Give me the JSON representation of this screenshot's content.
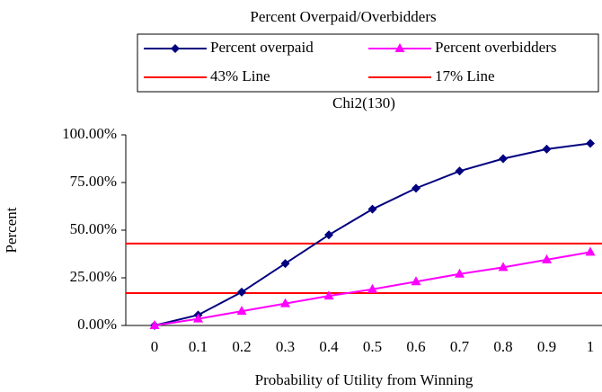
{
  "chart_data": {
    "type": "line",
    "title": "Percent Overpaid/Overbidders",
    "subtitle": "Chi2(130)",
    "x_label": "Probability of Utility from Winning",
    "y_label": "Percent",
    "categories": [
      "0",
      "0.1",
      "0.2",
      "0.3",
      "0.4",
      "0.5",
      "0.6",
      "0.7",
      "0.8",
      "0.9",
      "1"
    ],
    "series": [
      {
        "name": "Percent overpaid",
        "color": "#000080",
        "marker": "diamond",
        "values": [
          0,
          5.5,
          17.5,
          32.5,
          47.5,
          61,
          72,
          81,
          87.5,
          92.5,
          95.5
        ]
      },
      {
        "name": "Percent overbidders",
        "color": "#ff00ff",
        "marker": "triangle",
        "values": [
          0,
          3.5,
          7.5,
          11.5,
          15.5,
          19,
          23,
          27,
          30.5,
          34.5,
          38.5
        ]
      }
    ],
    "reference_lines": [
      {
        "name": "43% Line",
        "value": 43,
        "color": "#ff0000"
      },
      {
        "name": "17% Line",
        "value": 17,
        "color": "#ff0000"
      }
    ],
    "ylim": [
      0,
      100
    ],
    "yticks": [
      {
        "value": 0,
        "label": "0.00%"
      },
      {
        "value": 25,
        "label": "25.00%"
      },
      {
        "value": 50,
        "label": "50.00%"
      },
      {
        "value": 75,
        "label": "75.00%"
      },
      {
        "value": 100,
        "label": "100.00%"
      }
    ]
  }
}
